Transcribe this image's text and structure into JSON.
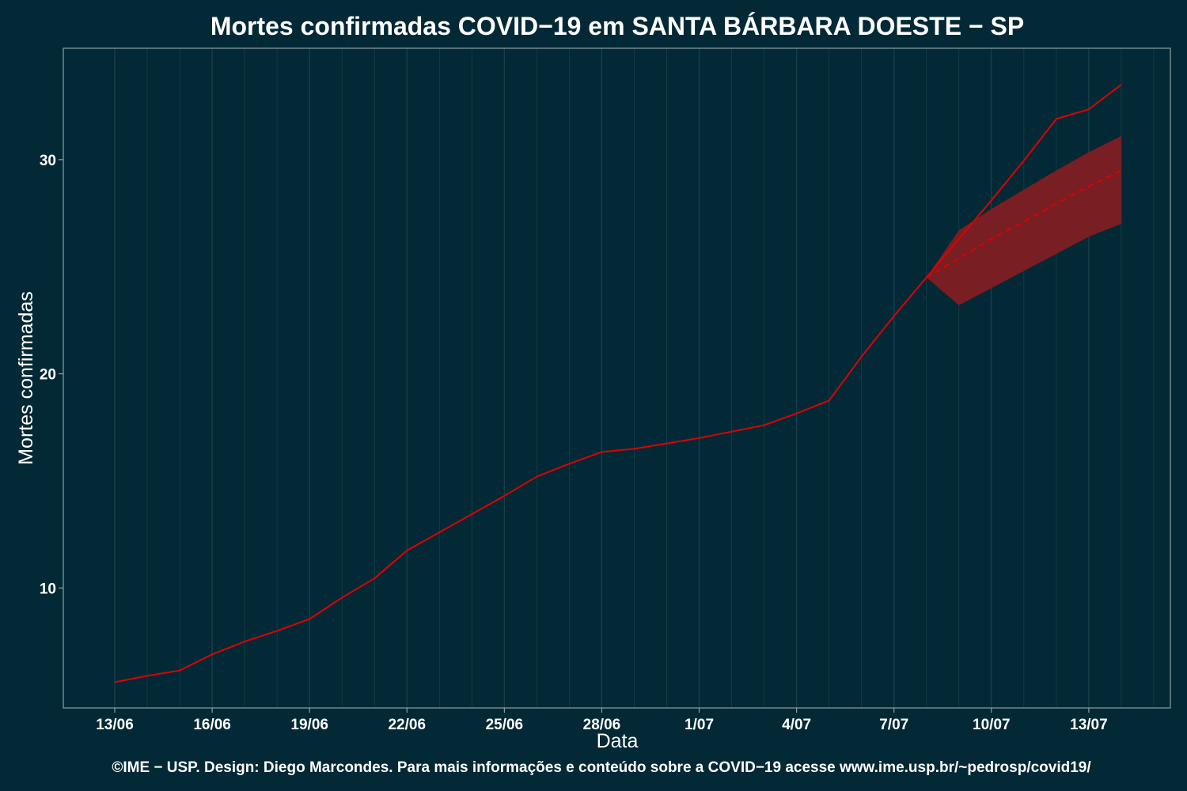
{
  "chart_data": {
    "type": "line",
    "title": "Mortes confirmadas COVID−19 em SANTA BÁRBARA DOESTE − SP",
    "xlabel": "Data",
    "ylabel": "Mortes confirmadas",
    "caption": "©IME − USP. Design: Diego Marcondes. Para mais informações e conteúdo sobre a COVID−19 acesse www.ime.usp.br/~pedrosp/covid19/",
    "x_tick_labels": [
      "13/06",
      "16/06",
      "19/06",
      "22/06",
      "25/06",
      "28/06",
      "1/07",
      "4/07",
      "7/07",
      "10/07",
      "13/07"
    ],
    "y_tick_labels": [
      "10",
      "20",
      "30"
    ],
    "y_ticks": [
      10,
      20,
      30
    ],
    "ylim": [
      4.4,
      35.2
    ],
    "x_dates": [
      "2020-06-13",
      "2020-07-15"
    ],
    "grid": true,
    "colors": {
      "background": "#022935",
      "line": "#e00000",
      "band": "#7f1d22",
      "grid": "#17404a",
      "frame": "#8c9fa3"
    },
    "series": [
      {
        "values": [
          [
            "2020-06-13",
            5.6
          ],
          [
            "2020-06-14",
            5.9
          ],
          [
            "2020-06-15",
            6.15
          ],
          [
            "2020-06-16",
            6.9
          ],
          [
            "2020-06-17",
            7.5
          ],
          [
            "2020-06-18",
            8.0
          ],
          [
            "2020-06-19",
            8.55
          ],
          [
            "2020-06-20",
            9.55
          ],
          [
            "2020-06-21",
            10.45
          ],
          [
            "2020-06-22",
            11.75
          ],
          [
            "2020-06-23",
            12.6
          ],
          [
            "2020-06-24",
            13.45
          ],
          [
            "2020-06-25",
            14.3
          ],
          [
            "2020-06-26",
            15.2
          ],
          [
            "2020-06-27",
            15.8
          ],
          [
            "2020-06-28",
            16.35
          ],
          [
            "2020-06-29",
            16.5
          ],
          [
            "2020-06-30",
            16.75
          ],
          [
            "2020-07-01",
            17.0
          ],
          [
            "2020-07-02",
            17.3
          ],
          [
            "2020-07-03",
            17.6
          ],
          [
            "2020-07-04",
            18.15
          ],
          [
            "2020-07-05",
            18.75
          ],
          [
            "2020-07-06",
            20.8
          ],
          [
            "2020-07-07",
            22.7
          ],
          [
            "2020-07-08",
            24.5
          ],
          [
            "2020-07-09",
            26.3
          ],
          [
            "2020-07-10",
            28.1
          ],
          [
            "2020-07-11",
            29.95
          ],
          [
            "2020-07-12",
            31.9
          ],
          [
            "2020-07-13",
            32.35
          ],
          [
            "2020-07-14",
            33.5
          ]
        ]
      },
      {
        "style": "dashed",
        "values": [
          [
            "2020-07-08",
            24.5
          ],
          [
            "2020-07-09",
            25.4
          ],
          [
            "2020-07-10",
            26.3
          ],
          [
            "2020-07-11",
            27.1
          ],
          [
            "2020-07-12",
            27.95
          ],
          [
            "2020-07-13",
            28.75
          ],
          [
            "2020-07-14",
            29.5
          ]
        ]
      }
    ],
    "band": {
      "x": [
        "2020-07-08",
        "2020-07-09",
        "2020-07-10",
        "2020-07-11",
        "2020-07-12",
        "2020-07-13",
        "2020-07-14"
      ],
      "lower": [
        24.5,
        23.2,
        24.0,
        24.8,
        25.6,
        26.4,
        27.0
      ],
      "upper": [
        24.5,
        26.7,
        27.7,
        28.6,
        29.5,
        30.35,
        31.1
      ]
    }
  }
}
